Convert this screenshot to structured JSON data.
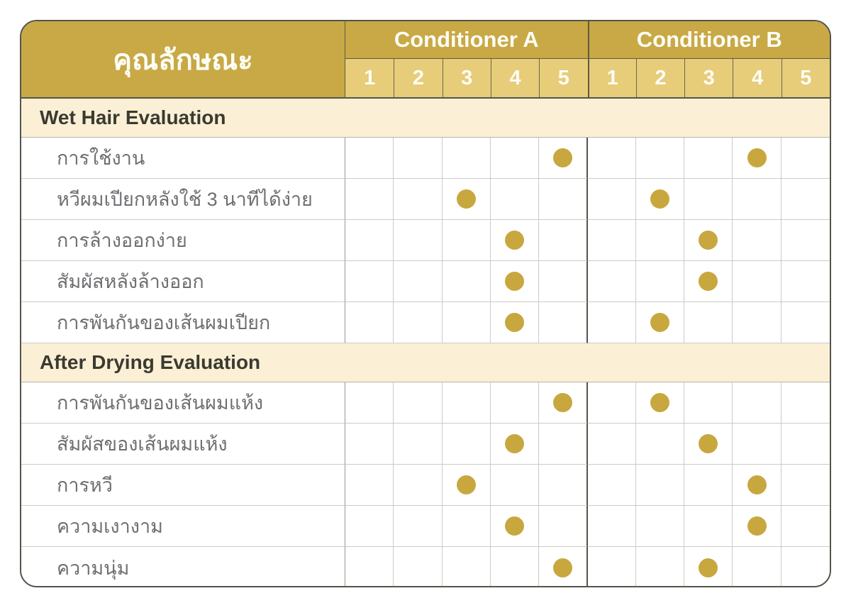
{
  "table": {
    "attribute_header": "คุณลักษณะ",
    "groups": [
      {
        "name": "Conditioner A",
        "scale": [
          "1",
          "2",
          "3",
          "4",
          "5"
        ]
      },
      {
        "name": "Conditioner B",
        "scale": [
          "1",
          "2",
          "3",
          "4",
          "5"
        ]
      }
    ],
    "sections": [
      {
        "title": "Wet Hair Evaluation",
        "rows": [
          {
            "label": "การใช้งาน",
            "conditioner_a": 5,
            "conditioner_b": 4
          },
          {
            "label": "หวีผมเปียกหลังใช้ 3 นาทีได้ง่าย",
            "conditioner_a": 3,
            "conditioner_b": 2
          },
          {
            "label": "การล้างออกง่าย",
            "conditioner_a": 4,
            "conditioner_b": 3
          },
          {
            "label": "สัมผัสหลังล้างออก",
            "conditioner_a": 4,
            "conditioner_b": 3
          },
          {
            "label": "การพันกันของเส้นผมเปียก",
            "conditioner_a": 4,
            "conditioner_b": 2
          }
        ]
      },
      {
        "title": "After Drying Evaluation",
        "rows": [
          {
            "label": "การพันกันของเส้นผมแห้ง",
            "conditioner_a": 5,
            "conditioner_b": 2
          },
          {
            "label": "สัมผัสของเส้นผมแห้ง",
            "conditioner_a": 4,
            "conditioner_b": 3
          },
          {
            "label": "การหวี",
            "conditioner_a": 3,
            "conditioner_b": 4
          },
          {
            "label": "ความเงางาม",
            "conditioner_a": 4,
            "conditioner_b": 4
          },
          {
            "label": "ความนุ่ม",
            "conditioner_a": 5,
            "conditioner_b": 3
          }
        ]
      }
    ]
  },
  "colors": {
    "header_gold": "#C8A945",
    "scale_row_gold": "#E7CC79",
    "section_cream": "#FBF0D6",
    "dot_gold": "#C9A73F",
    "dark_rule": "#55544a",
    "light_rule": "#cbcbc7",
    "header_text": "#fdfdf6",
    "section_text": "#3b3a30",
    "row_label_text": "#6e6f72"
  },
  "chart_data": {
    "type": "table",
    "title": "คุณลักษณะ (Attributes) — Conditioner A vs Conditioner B rating matrix, scale 1-5",
    "rating_scale": [
      1,
      2,
      3,
      4,
      5
    ],
    "categories": [
      "การใช้งาน",
      "หวีผมเปียกหลังใช้ 3 นาทีได้ง่าย",
      "การล้างออกง่าย",
      "สัมผัสหลังล้างออก",
      "การพันกันของเส้นผมเปียก",
      "การพันกันของเส้นผมแห้ง",
      "สัมผัสของเส้นผมแห้ง",
      "การหวี",
      "ความเงางาม",
      "ความนุ่ม"
    ],
    "category_sections": [
      {
        "name": "Wet Hair Evaluation",
        "row_indexes": [
          0,
          1,
          2,
          3,
          4
        ]
      },
      {
        "name": "After Drying Evaluation",
        "row_indexes": [
          5,
          6,
          7,
          8,
          9
        ]
      }
    ],
    "series": [
      {
        "name": "Conditioner A",
        "values": [
          5,
          3,
          4,
          4,
          4,
          5,
          4,
          3,
          4,
          5
        ]
      },
      {
        "name": "Conditioner B",
        "values": [
          4,
          2,
          3,
          3,
          2,
          2,
          3,
          4,
          4,
          3
        ]
      }
    ]
  }
}
